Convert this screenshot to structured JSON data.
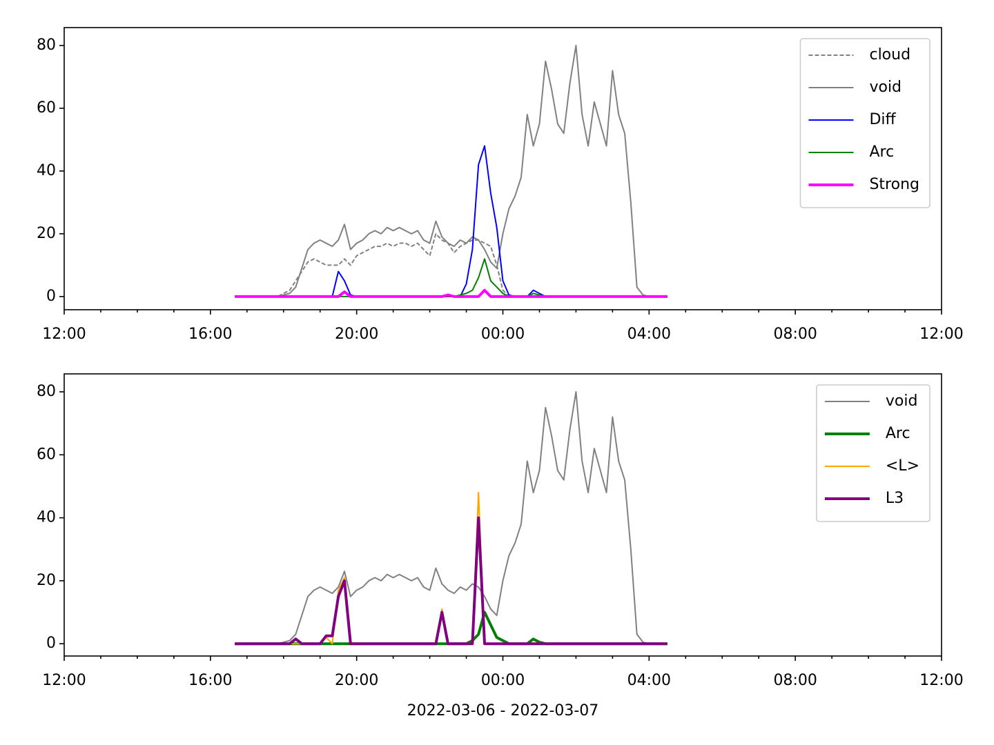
{
  "chart_data": [
    {
      "type": "line",
      "legend": "upper right",
      "xlim": [
        0,
        1440
      ],
      "ylim": [
        -4.2,
        85.7
      ],
      "xticks": [
        {
          "value": 0,
          "label": "12:00"
        },
        {
          "value": 240,
          "label": "16:00"
        },
        {
          "value": 480,
          "label": "20:00"
        },
        {
          "value": 720,
          "label": "00:00"
        },
        {
          "value": 960,
          "label": "04:00"
        },
        {
          "value": 1200,
          "label": "08:00"
        },
        {
          "value": 1440,
          "label": "12:00"
        }
      ],
      "xminorticks": [
        60,
        120,
        180,
        300,
        360,
        420,
        540,
        600,
        660,
        780,
        840,
        900,
        1020,
        1080,
        1140,
        1260,
        1320,
        1380
      ],
      "yticks": [
        0,
        20,
        40,
        60,
        80
      ],
      "x": [
        280,
        290,
        300,
        310,
        320,
        330,
        340,
        350,
        360,
        370,
        380,
        390,
        400,
        410,
        420,
        430,
        440,
        450,
        460,
        470,
        480,
        490,
        500,
        510,
        520,
        530,
        540,
        550,
        560,
        570,
        580,
        590,
        600,
        610,
        620,
        630,
        640,
        650,
        660,
        670,
        680,
        690,
        700,
        710,
        720,
        730,
        740,
        750,
        760,
        770,
        780,
        790,
        800,
        810,
        820,
        830,
        840,
        850,
        860,
        870,
        880,
        890,
        900,
        910,
        920,
        930,
        940,
        950,
        960,
        970,
        980,
        990
      ],
      "series": [
        {
          "name": "cloud",
          "color": "#808080",
          "linestyle": "dashed",
          "values": [
            0,
            0,
            0,
            0,
            0,
            0,
            0,
            0,
            1,
            2,
            5,
            8,
            11,
            12,
            11,
            10,
            10,
            10,
            12,
            10,
            13,
            14,
            15,
            16,
            16,
            17,
            16,
            17,
            17,
            16,
            17,
            15,
            13,
            20,
            18,
            17,
            14,
            16,
            17,
            18,
            18,
            17,
            16,
            10,
            2,
            0,
            0,
            0,
            0,
            0,
            0,
            0,
            0,
            0,
            0,
            0,
            0,
            0,
            0,
            0,
            0,
            0,
            0,
            0,
            0,
            0,
            0,
            0,
            0,
            0,
            0,
            0
          ]
        },
        {
          "name": "void",
          "color": "#808080",
          "values": [
            0,
            0,
            0,
            0,
            0,
            0,
            0,
            0,
            0.5,
            1,
            3,
            9,
            15,
            17,
            18,
            17,
            16,
            18,
            23,
            15,
            17,
            18,
            20,
            21,
            20,
            22,
            21,
            22,
            21,
            20,
            21,
            18,
            17,
            24,
            19,
            17,
            16,
            18,
            17,
            19,
            18,
            15,
            11,
            9,
            20,
            28,
            32,
            38,
            58,
            48,
            55,
            75,
            66,
            55,
            52,
            68,
            80,
            58,
            48,
            62,
            55,
            48,
            72,
            58,
            52,
            30,
            3,
            0.5,
            0,
            0,
            0,
            0
          ]
        },
        {
          "name": "Diff",
          "color": "#0000ff",
          "values": [
            0,
            0,
            0,
            0,
            0,
            0,
            0,
            0,
            0,
            0,
            0,
            0,
            0,
            0,
            0,
            0,
            0,
            8,
            5,
            0.5,
            0,
            0,
            0,
            0,
            0,
            0,
            0,
            0,
            0,
            0,
            0,
            0,
            0,
            0,
            0,
            0,
            0,
            0,
            4,
            15,
            42,
            48,
            33,
            22,
            5,
            0.5,
            0,
            0,
            0,
            2,
            1,
            0,
            0,
            0,
            0,
            0,
            0,
            0,
            0,
            0,
            0,
            0,
            0,
            0,
            0,
            0,
            0,
            0,
            0,
            0,
            0,
            0
          ]
        },
        {
          "name": "Arc",
          "color": "#008000",
          "values": [
            0,
            0,
            0,
            0,
            0,
            0,
            0,
            0,
            0,
            0,
            0,
            0,
            0,
            0,
            0,
            0,
            0,
            0,
            0,
            0,
            0,
            0,
            0,
            0,
            0,
            0,
            0,
            0,
            0,
            0,
            0,
            0,
            0,
            0,
            0,
            0,
            0,
            0.5,
            1,
            2,
            6,
            12,
            5,
            3,
            1,
            0,
            0,
            0,
            0,
            1,
            0.5,
            0,
            0,
            0,
            0,
            0,
            0,
            0,
            0,
            0,
            0,
            0,
            0,
            0,
            0,
            0,
            0,
            0,
            0,
            0,
            0,
            0
          ]
        },
        {
          "name": "Strong",
          "color": "#ff00ff",
          "linewidth": 2,
          "values": [
            0,
            0,
            0,
            0,
            0,
            0,
            0,
            0,
            0,
            0,
            0,
            0,
            0,
            0,
            0,
            0,
            0,
            0,
            1.5,
            0,
            0,
            0,
            0,
            0,
            0,
            0,
            0,
            0,
            0,
            0,
            0,
            0,
            0,
            0,
            0,
            0.5,
            0,
            0,
            0,
            0,
            0,
            2,
            0,
            0,
            0,
            0,
            0,
            0,
            0,
            0,
            0,
            0,
            0,
            0,
            0,
            0,
            0,
            0,
            0,
            0,
            0,
            0,
            0,
            0,
            0,
            0,
            0,
            0,
            0,
            0,
            0,
            0
          ]
        }
      ]
    },
    {
      "type": "line",
      "legend": "upper right",
      "xlabel": "2022-03-06 - 2022-03-07",
      "xlim": [
        0,
        1440
      ],
      "ylim": [
        -3.9,
        85.7
      ],
      "xticks": [
        {
          "value": 0,
          "label": "12:00"
        },
        {
          "value": 240,
          "label": "16:00"
        },
        {
          "value": 480,
          "label": "20:00"
        },
        {
          "value": 720,
          "label": "00:00"
        },
        {
          "value": 960,
          "label": "04:00"
        },
        {
          "value": 1200,
          "label": "08:00"
        },
        {
          "value": 1440,
          "label": "12:00"
        }
      ],
      "xminorticks": [
        60,
        120,
        180,
        300,
        360,
        420,
        540,
        600,
        660,
        780,
        840,
        900,
        1020,
        1080,
        1140,
        1260,
        1320,
        1380
      ],
      "yticks": [
        0,
        20,
        40,
        60,
        80
      ],
      "x": [
        280,
        290,
        300,
        310,
        320,
        330,
        340,
        350,
        360,
        370,
        380,
        390,
        400,
        410,
        420,
        430,
        440,
        450,
        460,
        470,
        480,
        490,
        500,
        510,
        520,
        530,
        540,
        550,
        560,
        570,
        580,
        590,
        600,
        610,
        620,
        630,
        640,
        650,
        660,
        670,
        680,
        690,
        700,
        710,
        720,
        730,
        740,
        750,
        760,
        770,
        780,
        790,
        800,
        810,
        820,
        830,
        840,
        850,
        860,
        870,
        880,
        890,
        900,
        910,
        920,
        930,
        940,
        950,
        960,
        970,
        980,
        990
      ],
      "series": [
        {
          "name": "void",
          "color": "#808080",
          "values": [
            0,
            0,
            0,
            0,
            0,
            0,
            0,
            0,
            0.5,
            1,
            3,
            9,
            15,
            17,
            18,
            17,
            16,
            18,
            23,
            15,
            17,
            18,
            20,
            21,
            20,
            22,
            21,
            22,
            21,
            20,
            21,
            18,
            17,
            24,
            19,
            17,
            16,
            18,
            17,
            19,
            18,
            15,
            11,
            9,
            20,
            28,
            32,
            38,
            58,
            48,
            55,
            75,
            66,
            55,
            52,
            68,
            80,
            58,
            48,
            62,
            55,
            48,
            72,
            58,
            52,
            30,
            3,
            0.5,
            0,
            0,
            0,
            0
          ]
        },
        {
          "name": "Arc",
          "color": "#008000",
          "linewidth": 2,
          "values": [
            0,
            0,
            0,
            0,
            0,
            0,
            0,
            0,
            0,
            0,
            0,
            0,
            0,
            0,
            0,
            0,
            0,
            0,
            0,
            0,
            0,
            0,
            0,
            0,
            0,
            0,
            0,
            0,
            0,
            0,
            0,
            0,
            0,
            0,
            0,
            0,
            0,
            0,
            0,
            1,
            3,
            10,
            6,
            2,
            1,
            0,
            0,
            0,
            0,
            1.5,
            0.5,
            0,
            0,
            0,
            0,
            0,
            0,
            0,
            0,
            0,
            0,
            0,
            0,
            0,
            0,
            0,
            0,
            0,
            0,
            0,
            0,
            0
          ]
        },
        {
          "name": "<L>",
          "color": "#ffa500",
          "values": [
            0,
            0,
            0,
            0,
            0,
            0,
            0,
            0,
            0,
            0,
            0,
            0,
            0,
            0,
            0,
            2,
            0,
            17,
            21,
            0.5,
            0,
            0,
            0,
            0,
            0,
            0,
            0,
            0,
            0,
            0,
            0,
            0,
            0,
            0,
            11,
            0,
            0,
            0,
            0,
            0,
            48,
            0,
            0,
            0,
            0,
            0,
            0,
            0,
            0,
            0,
            0,
            0,
            0,
            0,
            0,
            0,
            0,
            0,
            0,
            0,
            0,
            0,
            0,
            0,
            0,
            0,
            0,
            0,
            0,
            0,
            0,
            0
          ]
        },
        {
          "name": "L3",
          "color": "#800080",
          "linewidth": 2,
          "values": [
            0,
            0,
            0,
            0,
            0,
            0,
            0,
            0,
            0,
            0,
            1.5,
            0,
            0,
            0,
            0,
            2.5,
            2.5,
            15,
            20,
            0,
            0,
            0,
            0,
            0,
            0,
            0,
            0,
            0,
            0,
            0,
            0,
            0,
            0,
            0,
            10,
            0,
            0,
            0,
            0,
            0,
            40,
            0,
            0,
            0,
            0,
            0,
            0,
            0,
            0,
            0,
            0,
            0,
            0,
            0,
            0,
            0,
            0,
            0,
            0,
            0,
            0,
            0,
            0,
            0,
            0,
            0,
            0,
            0,
            0,
            0,
            0,
            0
          ]
        }
      ]
    }
  ]
}
